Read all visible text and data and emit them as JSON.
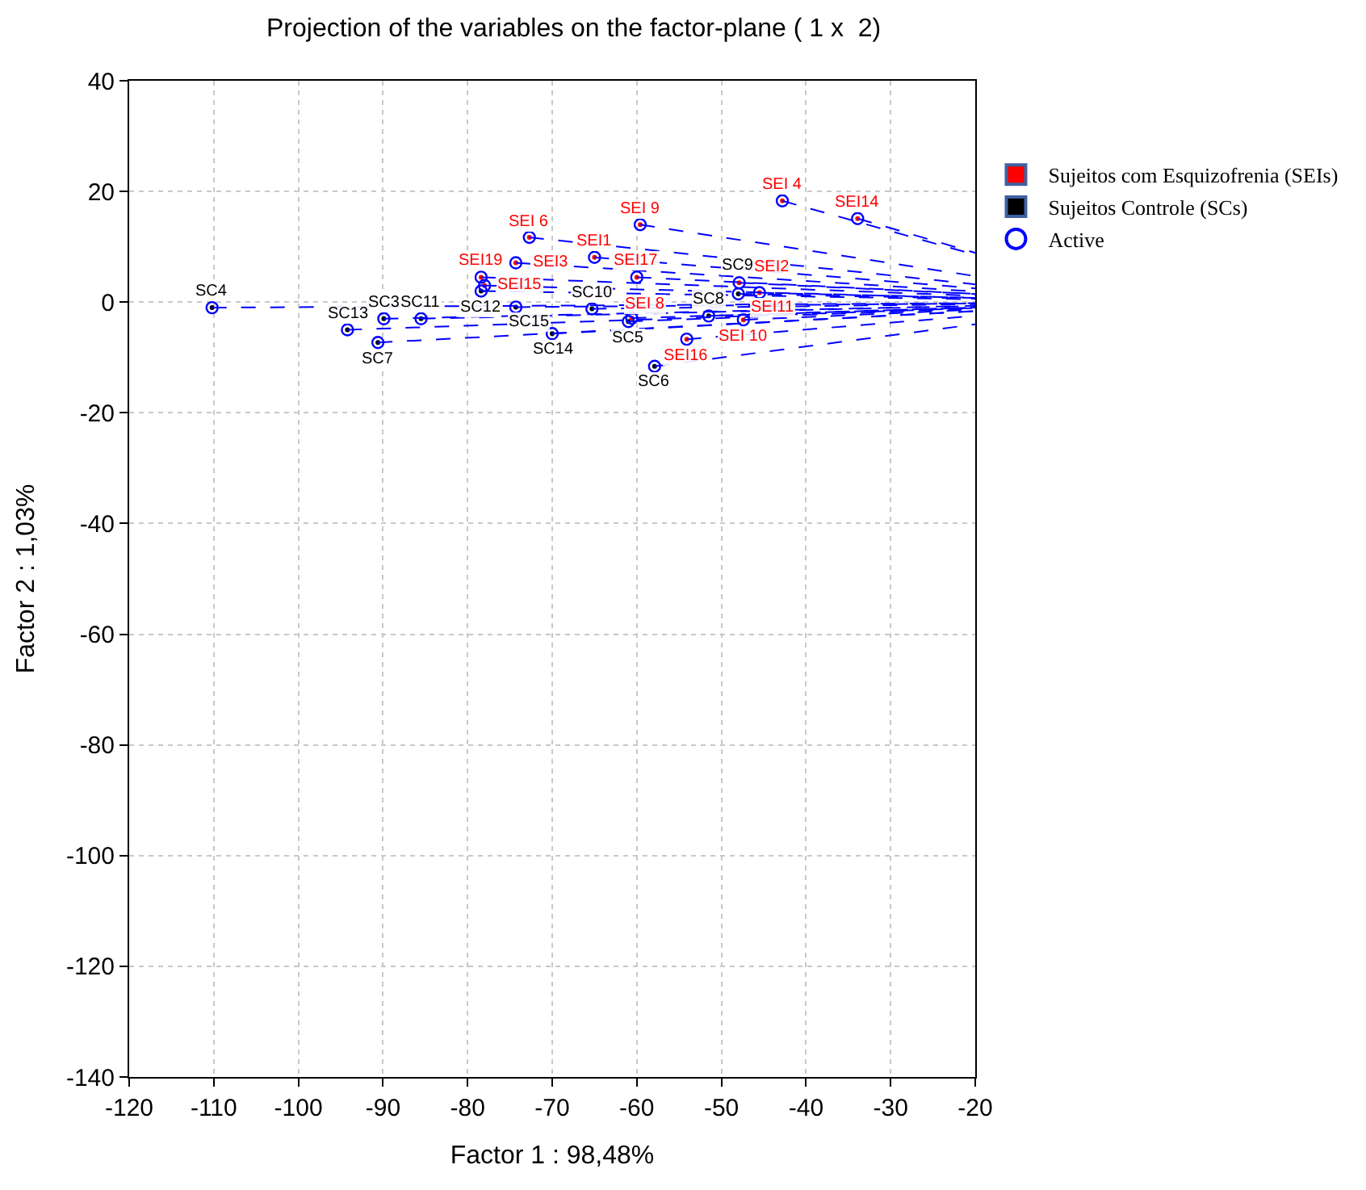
{
  "chart_data": {
    "type": "scatter",
    "title": "Projection of the variables on the factor-plane ( 1 x  2)",
    "xlabel": "Factor 1 : 98,48%",
    "ylabel": "Factor 2 : 1,03%",
    "xlim": [
      -120,
      -20
    ],
    "xticks": [
      -120,
      -110,
      -100,
      -90,
      -80,
      -70,
      -60,
      -50,
      -40,
      -30,
      -20
    ],
    "ylim": [
      -140,
      40
    ],
    "yticks": [
      -140,
      -120,
      -100,
      -80,
      -60,
      -40,
      -20,
      0,
      20,
      40
    ],
    "grid": true,
    "legend": "right",
    "marker": "circle",
    "line_style": "dashed",
    "series": [
      {
        "name": "Sujeitos com Esquizofrenia (SEIs)",
        "color": "#ff0000",
        "marker": "none",
        "x": [
          -42.8,
          -33.9,
          -59.6,
          -72.7,
          -65.0,
          -74.3,
          -78.4,
          -78.0,
          -60.0,
          -47.9,
          -60.6,
          -54.1,
          -47.4,
          -45.5
        ],
        "values": [
          18.3,
          15.1,
          14.0,
          11.7,
          8.1,
          7.1,
          4.5,
          3.0,
          4.5,
          3.5,
          -2.9,
          -6.7,
          -3.2,
          1.7
        ],
        "value_labels": [
          "SEI 4",
          "SEI14",
          "SEI 9",
          "SEI 6",
          "SEI1",
          "SEI3",
          "SEI19",
          "SEI15",
          "SEI17",
          "SEI2",
          "SEI 8",
          "SEI16",
          "SEI 10",
          "SEI11"
        ]
      },
      {
        "name": "Sujeitos Controle (SCs)",
        "color": "#000000",
        "marker": "none",
        "x": [
          -110.2,
          -94.2,
          -89.9,
          -90.6,
          -85.5,
          -78.4,
          -74.3,
          -70.0,
          -65.3,
          -61.0,
          -57.9,
          -51.5,
          -48.0
        ],
        "values": [
          -1.0,
          -5.0,
          -3.0,
          -7.3,
          -3.0,
          2.0,
          -0.9,
          -5.7,
          -1.2,
          -3.5,
          -11.6,
          -2.5,
          1.5
        ],
        "value_labels": [
          "SC4",
          "SC13",
          "SC3",
          "SC7",
          "SC11",
          "SC12",
          "SC15",
          "SC14",
          "SC10",
          "SC5",
          "SC6",
          "SC8",
          "SC9"
        ]
      },
      {
        "name": "Active",
        "color": "#0000ff",
        "x": [
          -42.8,
          -33.9,
          -59.6,
          -72.7,
          -65.0,
          -74.3,
          -78.4,
          -78.0,
          -60.0,
          -47.9,
          -60.6,
          -54.1,
          -47.4,
          -45.5,
          -110.2,
          -94.2,
          -89.9,
          -90.6,
          -85.5,
          -78.4,
          -74.3,
          -70.0,
          -65.3,
          -61.0,
          -57.9,
          -51.5,
          -48.0
        ],
        "values": [
          18.3,
          15.1,
          14.0,
          11.7,
          8.1,
          7.1,
          4.5,
          3.0,
          4.5,
          3.5,
          -2.9,
          -6.7,
          -3.2,
          1.7,
          -1.0,
          -5.0,
          -3.0,
          -7.3,
          -3.0,
          2.0,
          -0.9,
          -5.7,
          -1.2,
          -3.5,
          -11.6,
          -2.5,
          1.5
        ]
      }
    ]
  }
}
